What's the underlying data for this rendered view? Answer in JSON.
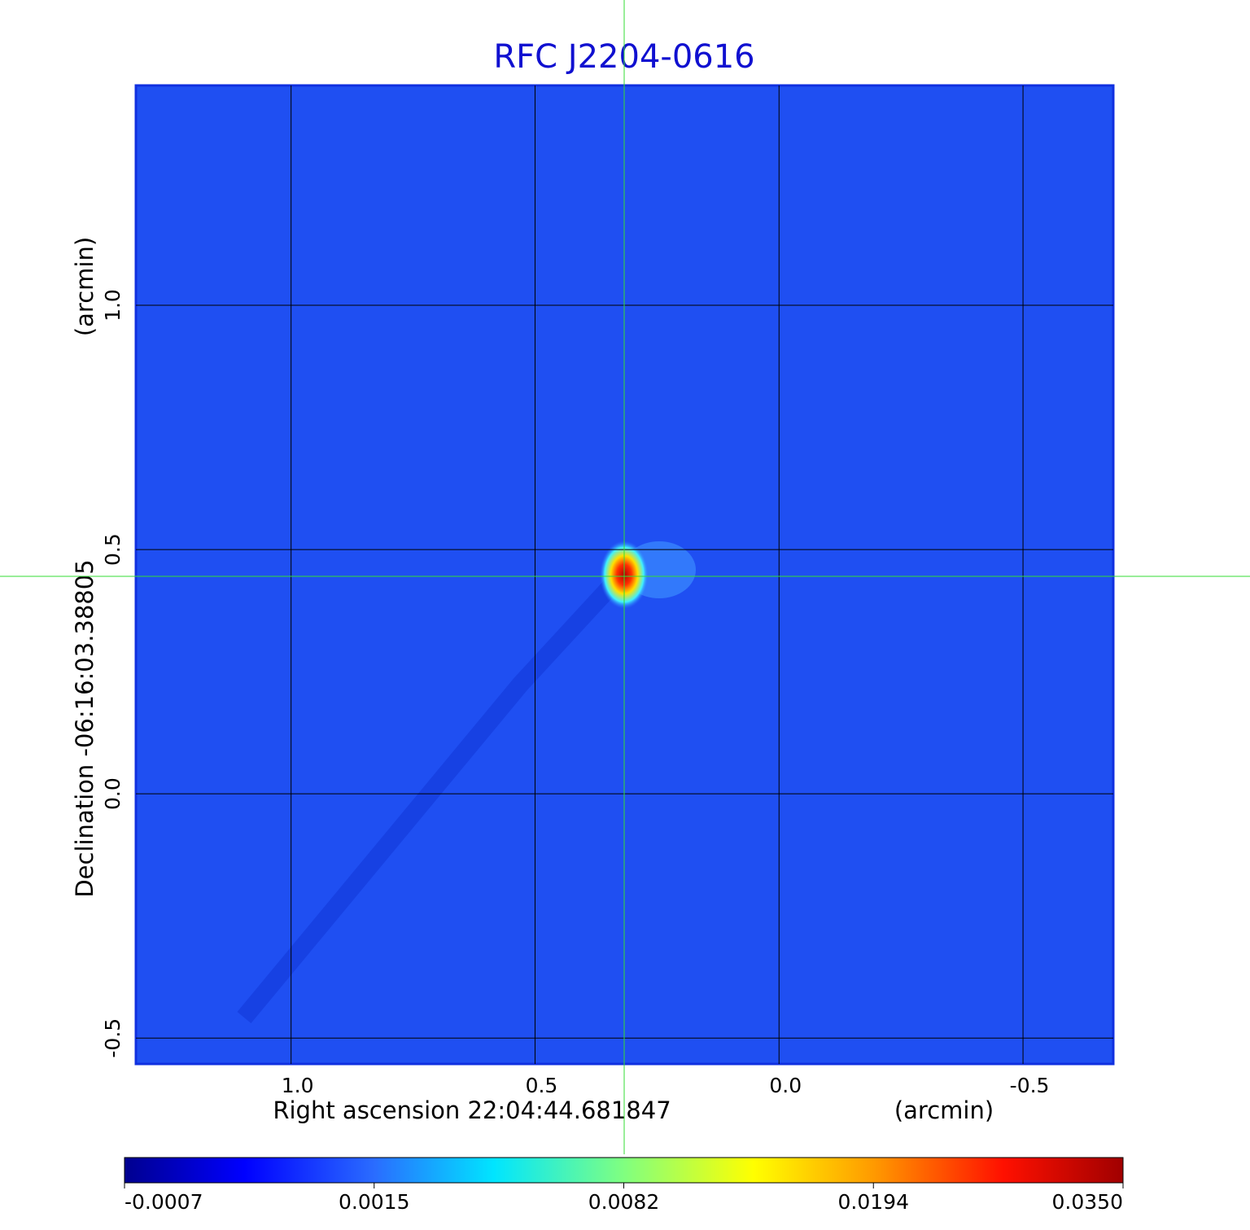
{
  "chart_data": {
    "type": "image-map",
    "title": "RFC J2204-0616",
    "x_label": "Right ascension  22:04:44.681847",
    "x_unit": "(arcmin)",
    "y_label": "Declination  -06:16:03.38805",
    "y_unit": "(arcmin)",
    "xlim": [
      1.318,
      -0.685
    ],
    "ylim": [
      -0.553,
      1.45
    ],
    "xticks": [
      {
        "value": 1,
        "label": "1.0"
      },
      0.5,
      {
        "value": 0,
        "label": "0.0"
      },
      -0.5
    ],
    "yticks": [
      -0.5,
      {
        "value": 0,
        "label": "0.0"
      },
      0.5,
      {
        "value": 1,
        "label": "1.0"
      }
    ],
    "grid": true,
    "colorbar_ticks": [
      -0.0007,
      0.0015,
      0.0082,
      0.0194,
      {
        "value": 0.035,
        "label": "0.0350"
      }
    ]
  }
}
